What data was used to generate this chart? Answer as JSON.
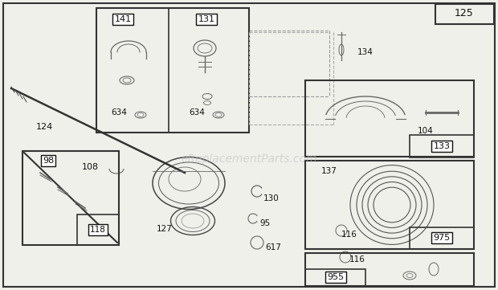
{
  "bg_color": "#f0f0eb",
  "watermark": "eReplacementParts.com",
  "watermark_color": "#bbbbbb",
  "watermark_alpha": 0.55,
  "text_color": "#111111",
  "line_color": "#444444",
  "part_color": "#666666"
}
